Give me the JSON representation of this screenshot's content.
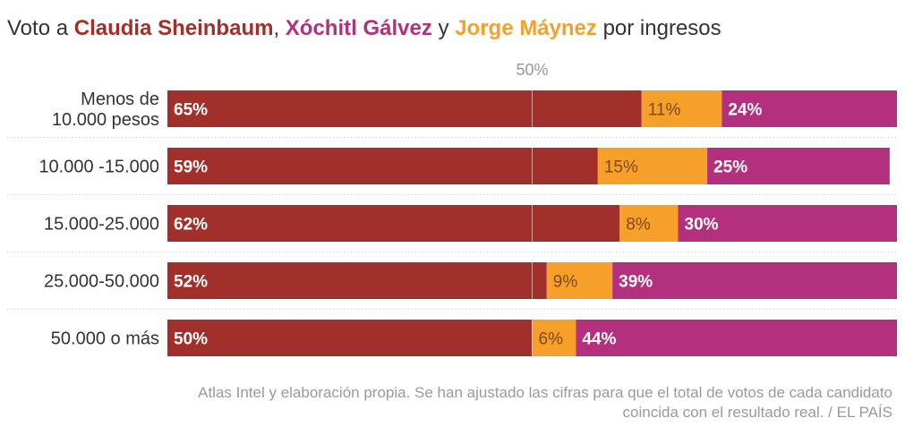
{
  "title": {
    "prefix": "Voto a ",
    "name1": "Claudia Sheinbaum",
    "sep1": ", ",
    "name2": "Xóchitl Gálvez",
    "sep2": " y ",
    "name3": "Jorge Máynez",
    "suffix": " por ingresos"
  },
  "chart_data": {
    "type": "bar",
    "orientation": "horizontal",
    "stacked": true,
    "categories": [
      "Menos de 10.000 pesos",
      "10.000 -15.000",
      "15.000-25.000",
      "25.000-50.000",
      "50.000 o más"
    ],
    "category_lines": [
      [
        "Menos de",
        "10.000 pesos"
      ],
      [
        "10.000 -15.000"
      ],
      [
        "15.000-25.000"
      ],
      [
        "25.000-50.000"
      ],
      [
        "50.000 o más"
      ]
    ],
    "series": [
      {
        "name": "Claudia Sheinbaum",
        "color": "#a2302a",
        "label_color": "#ffffff",
        "values": [
          65,
          59,
          62,
          52,
          50
        ]
      },
      {
        "name": "Jorge Máynez",
        "color": "#f6a02b",
        "label_color": "#7a4a10",
        "values": [
          11,
          15,
          8,
          9,
          6
        ]
      },
      {
        "name": "Xóchitl Gálvez",
        "color": "#b3307f",
        "label_color": "#ffffff",
        "values": [
          24,
          25,
          30,
          39,
          44
        ]
      }
    ],
    "value_suffix": "%",
    "reference_line": {
      "value": 50,
      "label": "50%"
    },
    "xlim": [
      0,
      100
    ]
  },
  "source": {
    "line1": "Atlas Intel y elaboración propia. Se han ajustado las cifras para que el total de votos de cada candidato",
    "line2": "coincida con el resultado real. / EL PAÍS"
  }
}
